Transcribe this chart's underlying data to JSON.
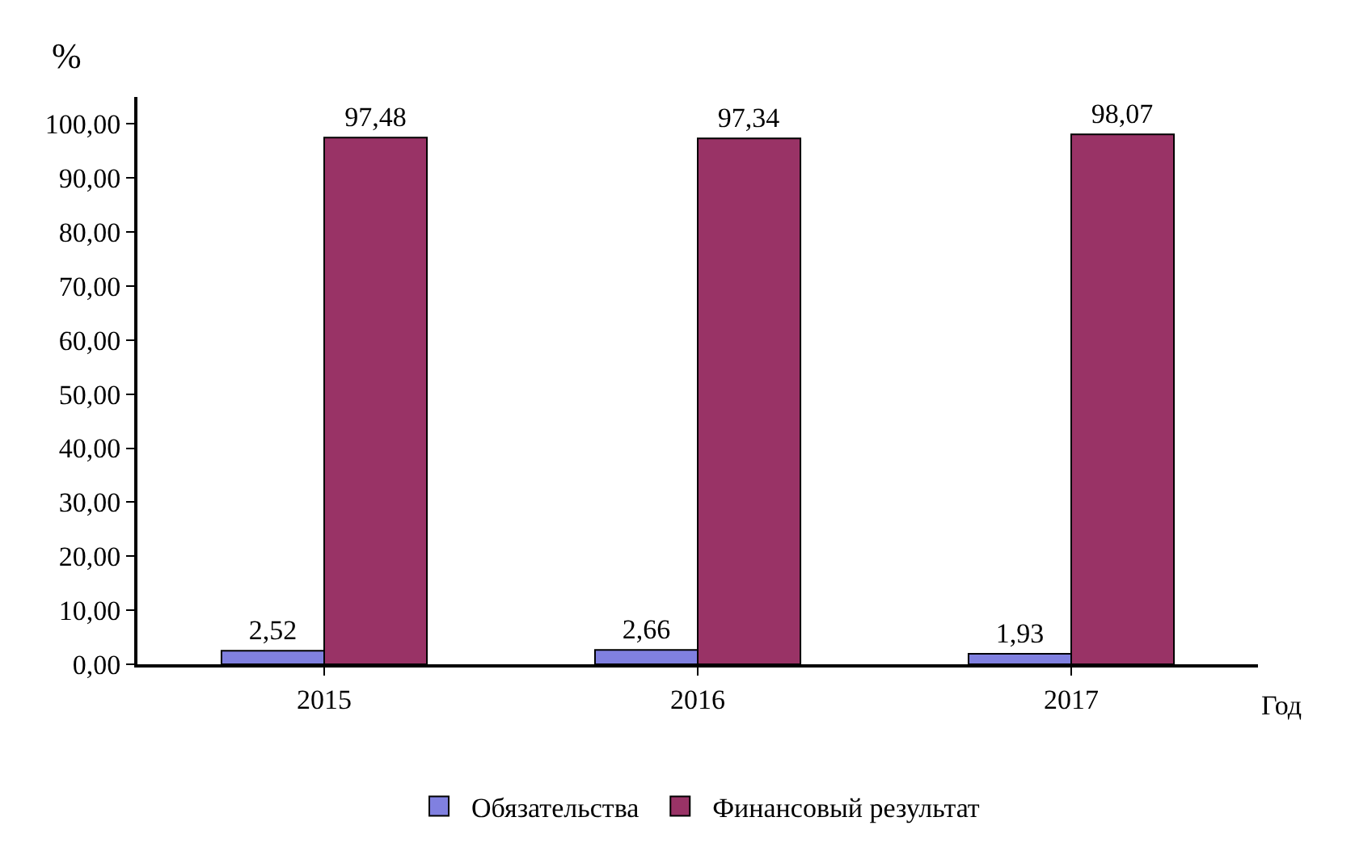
{
  "chart_data": {
    "type": "bar",
    "ylabel": "%",
    "xlabel": "Год",
    "categories": [
      "2015",
      "2016",
      "2017"
    ],
    "series": [
      {
        "name": "Обязательства",
        "color": "#8080e0",
        "values": [
          2.52,
          2.66,
          1.93
        ],
        "value_labels": [
          "2,52",
          "2,66",
          "1,93"
        ]
      },
      {
        "name": "Финансовый результат",
        "color": "#993366",
        "values": [
          97.48,
          97.34,
          98.07
        ],
        "value_labels": [
          "97,48",
          "97,34",
          "98,07"
        ]
      }
    ],
    "ylim": [
      0,
      105
    ],
    "yticks": [
      {
        "value": 0,
        "label": "0,00"
      },
      {
        "value": 10,
        "label": "10,00"
      },
      {
        "value": 20,
        "label": "20,00"
      },
      {
        "value": 30,
        "label": "30,00"
      },
      {
        "value": 40,
        "label": "40,00"
      },
      {
        "value": 50,
        "label": "50,00"
      },
      {
        "value": 60,
        "label": "60,00"
      },
      {
        "value": 70,
        "label": "70,00"
      },
      {
        "value": 80,
        "label": "80,00"
      },
      {
        "value": 90,
        "label": "90,00"
      },
      {
        "value": 100,
        "label": "100,00"
      }
    ],
    "grid": false,
    "legend": "bottom"
  }
}
